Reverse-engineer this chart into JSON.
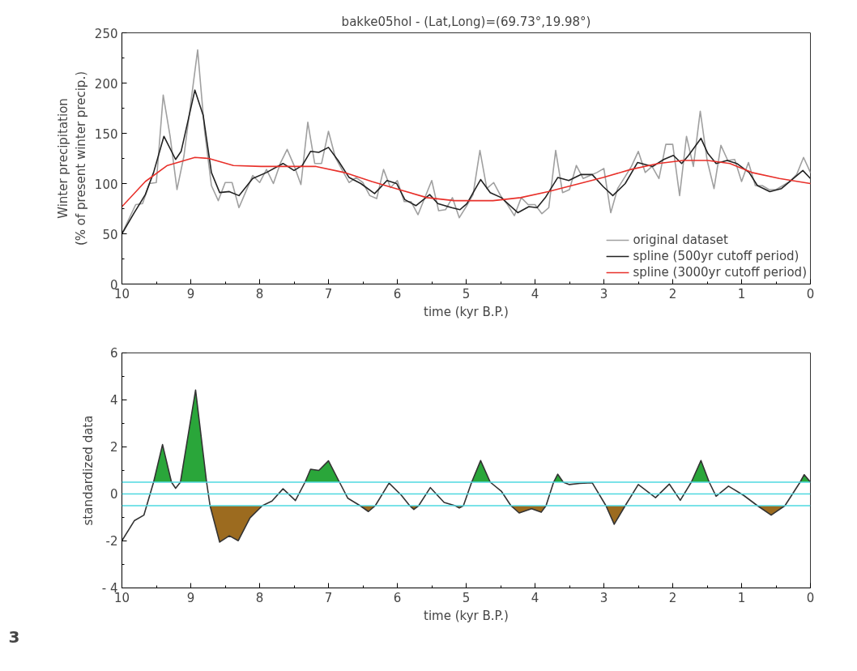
{
  "chart_data": [
    {
      "type": "line",
      "title": "bakke05hol - (Lat,Long)=(69.73°,19.98°)",
      "xlabel": "time (kyr B.P.)",
      "ylabel": "Winter precipitation\n(% of present winter precip.)",
      "xlim": [
        10,
        0
      ],
      "xticks": [
        10,
        9,
        8,
        7,
        6,
        5,
        4,
        3,
        2,
        1,
        0
      ],
      "ylim": [
        0,
        250
      ],
      "yticks": [
        0,
        50,
        100,
        150,
        200,
        250
      ],
      "grid": false,
      "legend": "bottom right",
      "series": [
        {
          "name": "original dataset",
          "color": "#a0a0a0",
          "x": [
            10.0,
            9.8,
            9.7,
            9.6,
            9.5,
            9.4,
            9.3,
            9.2,
            9.1,
            8.9,
            8.8,
            8.7,
            8.6,
            8.5,
            8.4,
            8.3,
            8.2,
            8.1,
            8.0,
            7.9,
            7.8,
            7.7,
            7.6,
            7.5,
            7.4,
            7.3,
            7.2,
            7.1,
            7.0,
            6.9,
            6.7,
            6.6,
            6.5,
            6.4,
            6.3,
            6.2,
            6.1,
            6.0,
            5.9,
            5.8,
            5.7,
            5.5,
            5.4,
            5.3,
            5.2,
            5.1,
            5.0,
            4.9,
            4.8,
            4.7,
            4.6,
            4.5,
            4.4,
            4.3,
            4.2,
            4.1,
            4.0,
            3.9,
            3.8,
            3.7,
            3.6,
            3.5,
            3.4,
            3.3,
            3.2,
            3.1,
            3.0,
            2.9,
            2.8,
            2.7,
            2.6,
            2.5,
            2.4,
            2.3,
            2.2,
            2.1,
            2.0,
            1.9,
            1.8,
            1.7,
            1.6,
            1.5,
            1.4,
            1.3,
            1.2,
            1.1,
            1.0,
            0.9,
            0.8,
            0.7,
            0.6,
            0.5,
            0.4,
            0.3,
            0.2,
            0.1,
            0.0
          ],
          "values": [
            50,
            79,
            80,
            100,
            101,
            188,
            147,
            94,
            127,
            233,
            153,
            98,
            83,
            101,
            101,
            76,
            92,
            108,
            101,
            114,
            100,
            120,
            134,
            118,
            99,
            161,
            120,
            120,
            152,
            126,
            101,
            106,
            101,
            88,
            85,
            114,
            96,
            103,
            82,
            82,
            69,
            103,
            73,
            74,
            86,
            66,
            77,
            89,
            133,
            95,
            101,
            88,
            79,
            68,
            86,
            79,
            79,
            70,
            76,
            133,
            91,
            94,
            118,
            105,
            108,
            111,
            115,
            71,
            95,
            106,
            117,
            132,
            111,
            117,
            105,
            139,
            139,
            88,
            147,
            117,
            172,
            123,
            95,
            138,
            123,
            124,
            102,
            121,
            98,
            98,
            94,
            94,
            98,
            102,
            109,
            126,
            111
          ]
        },
        {
          "name": "spline (500yr cutoff period)",
          "color": "#222222",
          "x": [
            10.0,
            9.82,
            9.66,
            9.54,
            9.39,
            9.22,
            9.14,
            8.94,
            8.82,
            8.7,
            8.58,
            8.44,
            8.3,
            8.1,
            7.9,
            7.66,
            7.5,
            7.38,
            7.26,
            7.14,
            7.0,
            6.86,
            6.7,
            6.53,
            6.33,
            6.15,
            6.01,
            5.89,
            5.73,
            5.53,
            5.41,
            5.21,
            5.09,
            4.99,
            4.79,
            4.65,
            4.49,
            4.25,
            4.09,
            3.97,
            3.85,
            3.67,
            3.51,
            3.33,
            3.17,
            3.01,
            2.87,
            2.69,
            2.51,
            2.29,
            2.13,
            1.99,
            1.87,
            1.77,
            1.59,
            1.49,
            1.37,
            1.21,
            1.07,
            0.89,
            0.77,
            0.59,
            0.42,
            0.25,
            0.11,
            0.0
          ],
          "values": [
            50,
            71,
            89,
            111,
            147,
            124,
            132,
            193,
            168,
            111,
            91,
            92,
            88,
            105,
            111,
            120,
            113,
            118,
            132,
            131,
            136,
            123,
            106,
            100,
            90,
            103,
            100,
            84,
            78,
            89,
            80,
            76,
            74,
            80,
            104,
            91,
            86,
            71,
            77,
            76,
            86,
            106,
            103,
            109,
            109,
            97,
            88,
            100,
            121,
            117,
            124,
            128,
            120,
            128,
            145,
            130,
            120,
            123,
            120,
            111,
            98,
            92,
            95,
            105,
            113,
            105
          ]
        },
        {
          "name": "spline (3000yr cutoff period)",
          "color": "#e8302a",
          "x": [
            10.0,
            9.66,
            9.34,
            8.94,
            8.74,
            8.38,
            7.98,
            7.58,
            7.18,
            6.77,
            6.37,
            5.97,
            5.57,
            5.17,
            4.61,
            4.21,
            3.81,
            3.41,
            3.01,
            2.61,
            2.21,
            1.85,
            1.49,
            1.17,
            0.85,
            0.45,
            0.0
          ],
          "values": [
            77,
            102,
            118,
            126,
            125,
            118,
            117,
            117,
            117,
            111,
            102,
            94,
            86,
            83,
            83,
            86,
            92,
            99,
            106,
            114,
            120,
            123,
            123,
            120,
            111,
            105,
            100
          ]
        }
      ]
    },
    {
      "type": "line",
      "xlabel": "time (kyr B.P.)",
      "ylabel": "standardized data",
      "xlim": [
        10,
        0
      ],
      "xticks": [
        10,
        9,
        8,
        7,
        6,
        5,
        4,
        3,
        2,
        1,
        0
      ],
      "ylim": [
        -4,
        6
      ],
      "yticks": [
        {
          "value": -4,
          "label": "- 4"
        },
        {
          "value": -2,
          "label": "-2"
        },
        0,
        2,
        4,
        6
      ],
      "grid": false,
      "legend": false,
      "x": [
        10.0,
        9.82,
        9.68,
        9.54,
        9.41,
        9.28,
        9.22,
        9.15,
        8.93,
        8.77,
        8.72,
        8.58,
        8.44,
        8.31,
        8.14,
        7.96,
        7.82,
        7.66,
        7.48,
        7.34,
        7.26,
        7.14,
        7.0,
        6.84,
        6.72,
        6.54,
        6.42,
        6.32,
        6.12,
        5.94,
        5.82,
        5.76,
        5.69,
        5.52,
        5.32,
        5.16,
        5.1,
        5.04,
        4.92,
        4.79,
        4.65,
        4.49,
        4.35,
        4.23,
        4.05,
        3.91,
        3.84,
        3.73,
        3.67,
        3.59,
        3.5,
        3.35,
        3.17,
        2.97,
        2.85,
        2.69,
        2.5,
        2.25,
        2.05,
        1.89,
        1.73,
        1.59,
        1.47,
        1.37,
        1.19,
        0.97,
        0.77,
        0.57,
        0.37,
        0.15,
        0.09,
        0.0
      ],
      "series": [
        {
          "type": "area",
          "color": "#2aa63a",
          "values": [
            null,
            null,
            null,
            0.5,
            2.1,
            0.5,
            null,
            0.5,
            4.42,
            0.5,
            null,
            null,
            null,
            null,
            null,
            null,
            null,
            null,
            null,
            0.5,
            1.05,
            1.0,
            1.41,
            0.5,
            null,
            null,
            null,
            null,
            null,
            null,
            null,
            null,
            null,
            null,
            null,
            null,
            null,
            null,
            0.5,
            1.42,
            0.5,
            null,
            null,
            null,
            null,
            null,
            null,
            0.5,
            0.84,
            0.5,
            null,
            null,
            null,
            null,
            null,
            null,
            null,
            null,
            null,
            null,
            0.5,
            1.42,
            0.5,
            null,
            null,
            null,
            null,
            null,
            null,
            0.5,
            0.82,
            0.5
          ]
        },
        {
          "type": "area",
          "color": "#9c6b1f",
          "values": [
            null,
            null,
            null,
            null,
            null,
            null,
            null,
            null,
            null,
            null,
            -0.5,
            -2.05,
            -1.78,
            -1.99,
            -1.02,
            -0.5,
            null,
            null,
            null,
            null,
            null,
            null,
            null,
            null,
            null,
            -0.5,
            -0.75,
            -0.5,
            null,
            null,
            -0.5,
            -0.66,
            -0.5,
            null,
            null,
            -0.5,
            -0.6,
            -0.5,
            null,
            null,
            null,
            null,
            -0.5,
            -0.81,
            -0.63,
            -0.78,
            -0.5,
            null,
            null,
            null,
            null,
            null,
            null,
            -0.5,
            -1.29,
            -0.5,
            null,
            null,
            null,
            null,
            null,
            null,
            null,
            null,
            null,
            null,
            -0.5,
            -0.9,
            -0.5,
            null,
            null,
            null
          ]
        },
        {
          "type": "line",
          "color": "#333333",
          "values": [
            -1.99,
            -1.14,
            -0.9,
            0.5,
            2.1,
            0.5,
            0.24,
            0.5,
            4.42,
            0.5,
            -0.5,
            -2.05,
            -1.78,
            -1.99,
            -1.02,
            -0.5,
            -0.3,
            0.22,
            -0.28,
            0.5,
            1.05,
            1.0,
            1.41,
            0.5,
            -0.18,
            -0.5,
            -0.75,
            -0.5,
            0.46,
            -0.06,
            -0.5,
            -0.66,
            -0.5,
            0.27,
            -0.36,
            -0.5,
            -0.6,
            -0.5,
            0.5,
            1.42,
            0.5,
            0.12,
            -0.5,
            -0.81,
            -0.63,
            -0.78,
            -0.5,
            0.5,
            0.84,
            0.5,
            0.4,
            0.45,
            0.48,
            -0.5,
            -1.29,
            -0.5,
            0.4,
            -0.16,
            0.42,
            -0.27,
            0.5,
            1.42,
            0.5,
            -0.1,
            0.33,
            -0.06,
            -0.5,
            -0.9,
            -0.5,
            0.5,
            0.82,
            0.5
          ]
        }
      ],
      "ref_lines": [
        {
          "axis": "y",
          "value": 0.5,
          "color": "#4fd8e0"
        },
        {
          "axis": "y",
          "value": 0,
          "color": "#4fd8e0"
        },
        {
          "axis": "y",
          "value": -0.5,
          "color": "#4fd8e0"
        }
      ],
      "annotations": [
        "3"
      ]
    }
  ]
}
